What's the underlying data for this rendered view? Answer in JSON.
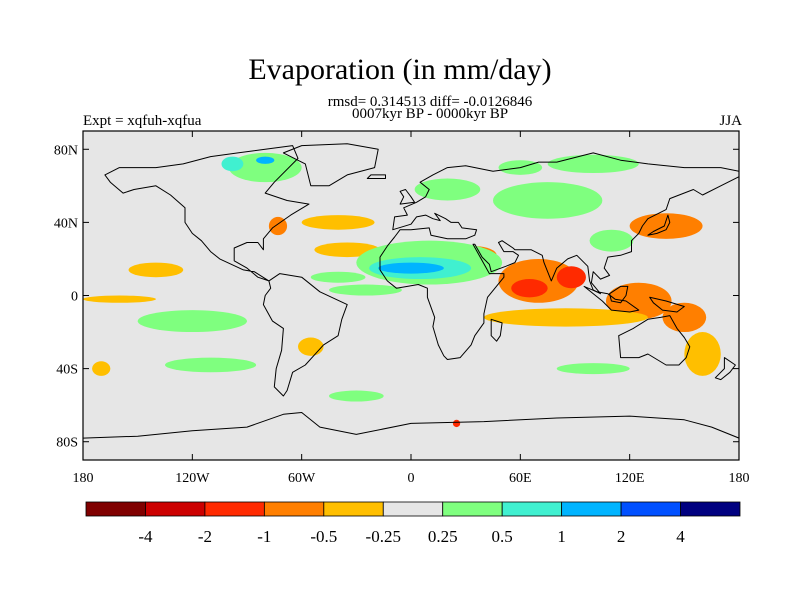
{
  "title": "Evaporation (in mm/day)",
  "stats_line": "rmsd= 0.314513 diff= -0.0126846",
  "period_line": "0007kyr BP - 0000kyr BP",
  "experiment_label": "Expt = xqfuh-xqfua",
  "season_label": "JJA",
  "map": {
    "background_color": "#e6e6e6",
    "lon_ticks": [
      "180",
      "120W",
      "60W",
      "0",
      "60E",
      "120E",
      "180"
    ],
    "lat_ticks": [
      "80N",
      "40N",
      "0",
      "40S",
      "80S"
    ]
  },
  "colorbar": {
    "colors": [
      "#800000",
      "#cc0000",
      "#ff2a00",
      "#ff7f00",
      "#ffbf00",
      "#e6e6e6",
      "#7fff7f",
      "#40f0d0",
      "#00b4ff",
      "#0050ff",
      "#000080"
    ],
    "labels": [
      "-4",
      "-2",
      "-1",
      "-0.5",
      "-0.25",
      "0.25",
      "0.5",
      "1",
      "2",
      "4"
    ]
  },
  "regions": [
    {
      "lon": 70,
      "lat": 8,
      "rx": 22,
      "ry": 12,
      "color": "#ff7f00"
    },
    {
      "lon": 88,
      "lat": 10,
      "rx": 8,
      "ry": 6,
      "color": "#ff2a00"
    },
    {
      "lon": 65,
      "lat": 4,
      "rx": 10,
      "ry": 5,
      "color": "#ff2a00"
    },
    {
      "lon": 125,
      "lat": -3,
      "rx": 18,
      "ry": 10,
      "color": "#ff7f00"
    },
    {
      "lon": 150,
      "lat": -12,
      "rx": 12,
      "ry": 8,
      "color": "#ff7f00"
    },
    {
      "lon": 85,
      "lat": -12,
      "rx": 45,
      "ry": 5,
      "color": "#ffbf00"
    },
    {
      "lon": 160,
      "lat": -32,
      "rx": 10,
      "ry": 12,
      "color": "#ffbf00"
    },
    {
      "lon": 140,
      "lat": 38,
      "rx": 20,
      "ry": 7,
      "color": "#ff7f00"
    },
    {
      "lon": 35,
      "lat": 22,
      "rx": 12,
      "ry": 5,
      "color": "#ff7f00"
    },
    {
      "lon": -140,
      "lat": 14,
      "rx": 15,
      "ry": 4,
      "color": "#ffbf00"
    },
    {
      "lon": -160,
      "lat": -2,
      "rx": 20,
      "ry": 2,
      "color": "#ffbf00"
    },
    {
      "lon": -35,
      "lat": 25,
      "rx": 18,
      "ry": 4,
      "color": "#ffbf00"
    },
    {
      "lon": -40,
      "lat": 40,
      "rx": 20,
      "ry": 4,
      "color": "#ffbf00"
    },
    {
      "lon": -73,
      "lat": 38,
      "rx": 5,
      "ry": 5,
      "color": "#ff7f00"
    },
    {
      "lon": -55,
      "lat": -28,
      "rx": 7,
      "ry": 5,
      "color": "#ffbf00"
    },
    {
      "lon": -25,
      "lat": 3,
      "rx": 20,
      "ry": 3,
      "color": "#7fff7f"
    },
    {
      "lon": -120,
      "lat": -14,
      "rx": 30,
      "ry": 6,
      "color": "#7fff7f"
    },
    {
      "lon": -110,
      "lat": -38,
      "rx": 25,
      "ry": 4,
      "color": "#7fff7f"
    },
    {
      "lon": 10,
      "lat": 18,
      "rx": 40,
      "ry": 12,
      "color": "#7fff7f"
    },
    {
      "lon": 5,
      "lat": 15,
      "rx": 28,
      "ry": 6,
      "color": "#40f0d0"
    },
    {
      "lon": 0,
      "lat": 15,
      "rx": 18,
      "ry": 3,
      "color": "#00b4ff"
    },
    {
      "lon": 75,
      "lat": 52,
      "rx": 30,
      "ry": 10,
      "color": "#7fff7f"
    },
    {
      "lon": 20,
      "lat": 58,
      "rx": 18,
      "ry": 6,
      "color": "#7fff7f"
    },
    {
      "lon": -80,
      "lat": 70,
      "rx": 20,
      "ry": 8,
      "color": "#7fff7f"
    },
    {
      "lon": -98,
      "lat": 72,
      "rx": 6,
      "ry": 4,
      "color": "#40f0d0"
    },
    {
      "lon": -80,
      "lat": 74,
      "rx": 5,
      "ry": 2,
      "color": "#00b4ff"
    },
    {
      "lon": -30,
      "lat": -55,
      "rx": 15,
      "ry": 3,
      "color": "#7fff7f"
    },
    {
      "lon": 100,
      "lat": -40,
      "rx": 20,
      "ry": 3,
      "color": "#7fff7f"
    },
    {
      "lon": 110,
      "lat": 30,
      "rx": 12,
      "ry": 6,
      "color": "#7fff7f"
    },
    {
      "lon": 100,
      "lat": 72,
      "rx": 25,
      "ry": 5,
      "color": "#7fff7f"
    },
    {
      "lon": 60,
      "lat": 70,
      "rx": 12,
      "ry": 4,
      "color": "#7fff7f"
    },
    {
      "lon": -40,
      "lat": 10,
      "rx": 15,
      "ry": 3,
      "color": "#7fff7f"
    },
    {
      "lon": -170,
      "lat": -40,
      "rx": 5,
      "ry": 4,
      "color": "#ffbf00"
    },
    {
      "lon": 25,
      "lat": -70,
      "rx": 2,
      "ry": 2,
      "color": "#ff2a00"
    }
  ],
  "continents": [
    {
      "name": "north-america",
      "points": [
        [
          -168,
          66
        ],
        [
          -160,
          70
        ],
        [
          -140,
          70
        ],
        [
          -125,
          72
        ],
        [
          -110,
          76
        ],
        [
          -95,
          78
        ],
        [
          -80,
          80
        ],
        [
          -65,
          82
        ],
        [
          -62,
          75
        ],
        [
          -75,
          62
        ],
        [
          -80,
          56
        ],
        [
          -68,
          52
        ],
        [
          -56,
          50
        ],
        [
          -66,
          44
        ],
        [
          -76,
          37
        ],
        [
          -81,
          31
        ],
        [
          -81,
          25
        ],
        [
          -84,
          29
        ],
        [
          -90,
          29
        ],
        [
          -97,
          26
        ],
        [
          -97,
          19
        ],
        [
          -90,
          15
        ],
        [
          -84,
          10
        ],
        [
          -78,
          8
        ],
        [
          -86,
          13
        ],
        [
          -92,
          14
        ],
        [
          -105,
          20
        ],
        [
          -110,
          24
        ],
        [
          -115,
          30
        ],
        [
          -120,
          34
        ],
        [
          -124,
          40
        ],
        [
          -124,
          48
        ],
        [
          -132,
          55
        ],
        [
          -140,
          60
        ],
        [
          -152,
          58
        ],
        [
          -158,
          56
        ],
        [
          -165,
          62
        ]
      ]
    },
    {
      "name": "greenland",
      "points": [
        [
          -55,
          60
        ],
        [
          -45,
          60
        ],
        [
          -35,
          66
        ],
        [
          -20,
          70
        ],
        [
          -18,
          80
        ],
        [
          -35,
          83
        ],
        [
          -60,
          82
        ],
        [
          -70,
          78
        ],
        [
          -58,
          72
        ]
      ]
    },
    {
      "name": "south-america",
      "points": [
        [
          -78,
          8
        ],
        [
          -72,
          12
        ],
        [
          -60,
          10
        ],
        [
          -50,
          2
        ],
        [
          -35,
          -5
        ],
        [
          -38,
          -13
        ],
        [
          -40,
          -22
        ],
        [
          -48,
          -27
        ],
        [
          -58,
          -38
        ],
        [
          -65,
          -42
        ],
        [
          -68,
          -52
        ],
        [
          -70,
          -55
        ],
        [
          -75,
          -50
        ],
        [
          -74,
          -40
        ],
        [
          -71,
          -30
        ],
        [
          -70,
          -18
        ],
        [
          -76,
          -14
        ],
        [
          -81,
          -5
        ],
        [
          -80,
          0
        ],
        [
          -77,
          4
        ]
      ]
    },
    {
      "name": "eurasia-africa",
      "points": [
        [
          -10,
          36
        ],
        [
          -9,
          43
        ],
        [
          -2,
          44
        ],
        [
          -4,
          48
        ],
        [
          3,
          51
        ],
        [
          8,
          54
        ],
        [
          10,
          58
        ],
        [
          5,
          62
        ],
        [
          12,
          66
        ],
        [
          20,
          70
        ],
        [
          30,
          71
        ],
        [
          45,
          68
        ],
        [
          60,
          70
        ],
        [
          70,
          73
        ],
        [
          80,
          73
        ],
        [
          100,
          78
        ],
        [
          115,
          74
        ],
        [
          130,
          72
        ],
        [
          150,
          70
        ],
        [
          170,
          70
        ],
        [
          180,
          68
        ],
        [
          180,
          65
        ],
        [
          170,
          60
        ],
        [
          160,
          55
        ],
        [
          155,
          58
        ],
        [
          142,
          53
        ],
        [
          140,
          47
        ],
        [
          130,
          42
        ],
        [
          127,
          38
        ],
        [
          125,
          34
        ],
        [
          121,
          30
        ],
        [
          121,
          24
        ],
        [
          115,
          22
        ],
        [
          108,
          21
        ],
        [
          106,
          15
        ],
        [
          109,
          11
        ],
        [
          104,
          9
        ],
        [
          100,
          13
        ],
        [
          99,
          7
        ],
        [
          104,
          1
        ],
        [
          100,
          3
        ],
        [
          98,
          8
        ],
        [
          97,
          16
        ],
        [
          91,
          22
        ],
        [
          86,
          20
        ],
        [
          80,
          15
        ],
        [
          77,
          8
        ],
        [
          73,
          18
        ],
        [
          72,
          22
        ],
        [
          66,
          25
        ],
        [
          57,
          25
        ],
        [
          56,
          26
        ],
        [
          50,
          30
        ],
        [
          48,
          29
        ],
        [
          51,
          24
        ],
        [
          56,
          24
        ],
        [
          59,
          22
        ],
        [
          57,
          18
        ],
        [
          52,
          16
        ],
        [
          44,
          13
        ],
        [
          43,
          17
        ],
        [
          39,
          21
        ],
        [
          35,
          28
        ],
        [
          34,
          28
        ],
        [
          43,
          12
        ],
        [
          51,
          12
        ],
        [
          51,
          10
        ],
        [
          42,
          -1
        ],
        [
          40,
          -10
        ],
        [
          40,
          -15
        ],
        [
          35,
          -22
        ],
        [
          33,
          -27
        ],
        [
          27,
          -34
        ],
        [
          20,
          -35
        ],
        [
          18,
          -33
        ],
        [
          15,
          -27
        ],
        [
          12,
          -17
        ],
        [
          13,
          -12
        ],
        [
          9,
          -1
        ],
        [
          9,
          4
        ],
        [
          4,
          6
        ],
        [
          -2,
          5
        ],
        [
          -8,
          4
        ],
        [
          -13,
          8
        ],
        [
          -17,
          14
        ],
        [
          -17,
          21
        ],
        [
          -13,
          27
        ],
        [
          -9,
          32
        ],
        [
          -6,
          36
        ],
        [
          0,
          36
        ],
        [
          10,
          37
        ],
        [
          11,
          33
        ],
        [
          20,
          31
        ],
        [
          30,
          31
        ],
        [
          35,
          33
        ],
        [
          36,
          36
        ],
        [
          28,
          37
        ],
        [
          26,
          40
        ],
        [
          22,
          40
        ],
        [
          19,
          42
        ],
        [
          13,
          45
        ],
        [
          16,
          41
        ],
        [
          12,
          42
        ],
        [
          8,
          44
        ],
        [
          3,
          43
        ],
        [
          0,
          39
        ]
      ]
    },
    {
      "name": "australia",
      "points": [
        [
          114,
          -22
        ],
        [
          122,
          -18
        ],
        [
          130,
          -13
        ],
        [
          137,
          -12
        ],
        [
          142,
          -11
        ],
        [
          146,
          -18
        ],
        [
          150,
          -23
        ],
        [
          153,
          -28
        ],
        [
          151,
          -34
        ],
        [
          147,
          -38
        ],
        [
          140,
          -38
        ],
        [
          135,
          -35
        ],
        [
          130,
          -32
        ],
        [
          125,
          -34
        ],
        [
          115,
          -34
        ]
      ]
    },
    {
      "name": "antarctica",
      "points": [
        [
          -180,
          -78
        ],
        [
          -150,
          -77
        ],
        [
          -120,
          -74
        ],
        [
          -90,
          -72
        ],
        [
          -70,
          -65
        ],
        [
          -60,
          -64
        ],
        [
          -50,
          -72
        ],
        [
          -30,
          -76
        ],
        [
          0,
          -70
        ],
        [
          40,
          -69
        ],
        [
          80,
          -67
        ],
        [
          120,
          -66
        ],
        [
          150,
          -68
        ],
        [
          165,
          -72
        ],
        [
          180,
          -78
        ],
        [
          180,
          -90
        ],
        [
          -180,
          -90
        ]
      ]
    },
    {
      "name": "madagascar",
      "points": [
        [
          44,
          -13
        ],
        [
          50,
          -15
        ],
        [
          49,
          -22
        ],
        [
          47,
          -25
        ],
        [
          44,
          -22
        ]
      ]
    },
    {
      "name": "indonesia",
      "points": [
        [
          95,
          5
        ],
        [
          105,
          -3
        ],
        [
          110,
          -8
        ],
        [
          120,
          -9
        ],
        [
          125,
          -8
        ],
        [
          118,
          -3
        ],
        [
          112,
          -2
        ],
        [
          108,
          1
        ],
        [
          102,
          2
        ]
      ]
    },
    {
      "name": "borneo",
      "points": [
        [
          109,
          1
        ],
        [
          115,
          5
        ],
        [
          119,
          5
        ],
        [
          118,
          0
        ],
        [
          115,
          -4
        ],
        [
          110,
          -3
        ]
      ]
    },
    {
      "name": "new-guinea",
      "points": [
        [
          131,
          -1
        ],
        [
          140,
          -3
        ],
        [
          150,
          -6
        ],
        [
          146,
          -9
        ],
        [
          138,
          -8
        ],
        [
          133,
          -4
        ]
      ]
    },
    {
      "name": "japan",
      "points": [
        [
          130,
          33
        ],
        [
          135,
          34
        ],
        [
          140,
          36
        ],
        [
          142,
          40
        ],
        [
          141,
          44
        ],
        [
          139,
          38
        ],
        [
          133,
          35
        ]
      ]
    },
    {
      "name": "uk",
      "points": [
        [
          -6,
          50
        ],
        [
          2,
          51
        ],
        [
          0,
          54
        ],
        [
          -3,
          58
        ],
        [
          -6,
          57
        ],
        [
          -4,
          54
        ]
      ]
    },
    {
      "name": "new-zealand",
      "points": [
        [
          172,
          -34
        ],
        [
          178,
          -38
        ],
        [
          175,
          -42
        ],
        [
          170,
          -46
        ],
        [
          167,
          -45
        ],
        [
          172,
          -40
        ]
      ]
    },
    {
      "name": "iceland",
      "points": [
        [
          -24,
          64
        ],
        [
          -14,
          64
        ],
        [
          -14,
          66
        ],
        [
          -22,
          66
        ]
      ]
    }
  ]
}
